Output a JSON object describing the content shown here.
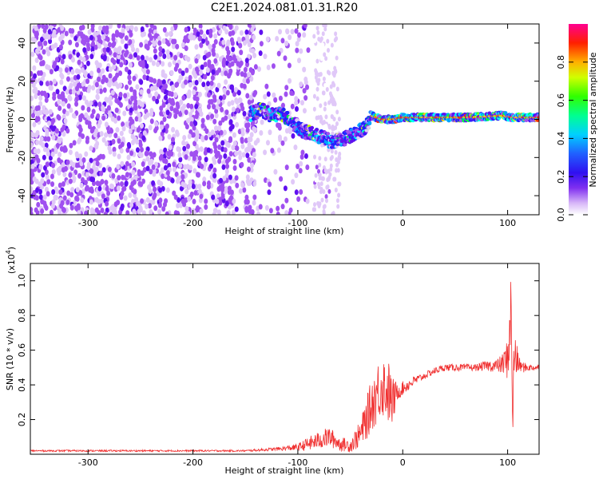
{
  "title": "C2E1.2024.081.01.31.R20",
  "chart_data": [
    {
      "type": "heatmap",
      "xlabel": "Height of straight line (km)",
      "ylabel": "Frequency (Hz)",
      "xlim": [
        -355,
        130
      ],
      "ylim": [
        -50,
        50
      ],
      "xticks": [
        -300,
        -200,
        -100,
        0,
        100
      ],
      "yticks": [
        -40,
        -20,
        0,
        20,
        40
      ],
      "colorbar": {
        "label": "Normalized spectral amplitude",
        "range": [
          0.0,
          1.0
        ],
        "ticks": [
          0.0,
          0.2,
          0.4,
          0.6,
          0.8
        ],
        "colors": [
          "#ffffff",
          "#e0c8f8",
          "#a050f0",
          "#6010f0",
          "#2020ff",
          "#00a0ff",
          "#00ffff",
          "#00ff40",
          "#c0ff00",
          "#ffd000",
          "#ff3000",
          "#ff0090"
        ]
      },
      "features": {
        "noise_region_x": [
          -355,
          -140
        ],
        "ridge_points": [
          {
            "x": -145,
            "y": 3
          },
          {
            "x": -135,
            "y": 5
          },
          {
            "x": -125,
            "y": 2
          },
          {
            "x": -115,
            "y": 3
          },
          {
            "x": -105,
            "y": -2
          },
          {
            "x": -95,
            "y": -6
          },
          {
            "x": -85,
            "y": -8
          },
          {
            "x": -75,
            "y": -10
          },
          {
            "x": -65,
            "y": -12
          },
          {
            "x": -55,
            "y": -10
          },
          {
            "x": -45,
            "y": -7
          },
          {
            "x": -35,
            "y": -4
          },
          {
            "x": -30,
            "y": 2
          },
          {
            "x": -20,
            "y": 0
          },
          {
            "x": -10,
            "y": 0
          },
          {
            "x": 0,
            "y": 1
          },
          {
            "x": 20,
            "y": 1
          },
          {
            "x": 40,
            "y": 1
          },
          {
            "x": 60,
            "y": 1
          },
          {
            "x": 80,
            "y": 1.5
          },
          {
            "x": 95,
            "y": 2
          },
          {
            "x": 105,
            "y": 1
          },
          {
            "x": 130,
            "y": 1
          }
        ]
      }
    },
    {
      "type": "line",
      "xlabel": "Height of straight line (km)",
      "ylabel": "SNR (10 * v/v)",
      "y_scale_label": "(x10",
      "y_scale_exp": "4",
      "xlim": [
        -355,
        130
      ],
      "ylim": [
        0,
        1.1
      ],
      "xticks": [
        -300,
        -200,
        -100,
        0,
        100
      ],
      "yticks": [
        0.2,
        0.4,
        0.6,
        0.8,
        1.0
      ],
      "color": "#f03030",
      "series": [
        {
          "x": [
            -355,
            -300,
            -250,
            -200,
            -150,
            -120,
            -100,
            -90,
            -80,
            -70,
            -60,
            -50,
            -40,
            -35,
            -30,
            -25,
            -20,
            -15,
            -10,
            -5,
            0,
            10,
            20,
            30,
            40,
            50,
            60,
            70,
            80,
            90,
            95,
            100,
            103,
            105,
            107,
            110,
            115,
            120,
            130
          ],
          "y": [
            0.02,
            0.02,
            0.02,
            0.02,
            0.02,
            0.03,
            0.04,
            0.06,
            0.08,
            0.1,
            0.06,
            0.05,
            0.12,
            0.2,
            0.28,
            0.35,
            0.4,
            0.38,
            0.3,
            0.36,
            0.38,
            0.42,
            0.45,
            0.48,
            0.5,
            0.5,
            0.5,
            0.5,
            0.51,
            0.51,
            0.52,
            0.55,
            0.8,
            0.3,
            0.6,
            0.52,
            0.5,
            0.5,
            0.5
          ],
          "spread": [
            0.005,
            0.005,
            0.005,
            0.005,
            0.005,
            0.01,
            0.02,
            0.04,
            0.05,
            0.06,
            0.04,
            0.04,
            0.08,
            0.12,
            0.15,
            0.18,
            0.18,
            0.2,
            0.15,
            0.05,
            0.04,
            0.03,
            0.02,
            0.02,
            0.02,
            0.02,
            0.02,
            0.02,
            0.03,
            0.04,
            0.06,
            0.12,
            0.25,
            0.25,
            0.2,
            0.05,
            0.03,
            0.02,
            0.02
          ]
        }
      ]
    }
  ]
}
